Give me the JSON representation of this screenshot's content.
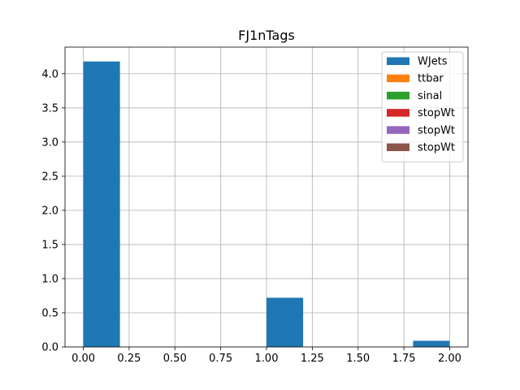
{
  "chart_data": {
    "type": "bar",
    "title": "FJ1nTags",
    "xlabel": "",
    "ylabel": "",
    "xlim": [
      -0.1,
      2.1
    ],
    "ylim": [
      0,
      4.39
    ],
    "x_ticks": [
      0.0,
      0.25,
      0.5,
      0.75,
      1.0,
      1.25,
      1.5,
      1.75,
      2.0
    ],
    "x_tick_labels": [
      "0.00",
      "0.25",
      "0.50",
      "0.75",
      "1.00",
      "1.25",
      "1.50",
      "1.75",
      "2.00"
    ],
    "y_ticks": [
      0.0,
      0.5,
      1.0,
      1.5,
      2.0,
      2.5,
      3.0,
      3.5,
      4.0
    ],
    "y_tick_labels": [
      "0.0",
      "0.5",
      "1.0",
      "1.5",
      "2.0",
      "2.5",
      "3.0",
      "3.5",
      "4.0"
    ],
    "grid": true,
    "legend_position": "top-right",
    "bin_edges": [
      0.0,
      0.2,
      0.4,
      0.6,
      0.8,
      1.0,
      1.2,
      1.4,
      1.6,
      1.8,
      2.0
    ],
    "series": [
      {
        "name": "WJets",
        "color": "#1f77b4",
        "values": [
          4.18,
          0,
          0,
          0,
          0,
          0.72,
          0,
          0,
          0,
          0.09
        ]
      },
      {
        "name": "ttbar",
        "color": "#ff7f0e",
        "values": [
          0,
          0,
          0,
          0,
          0,
          0,
          0,
          0,
          0,
          0
        ]
      },
      {
        "name": "sinal",
        "color": "#2ca02c",
        "values": [
          0,
          0,
          0,
          0,
          0,
          0,
          0,
          0,
          0,
          0
        ]
      },
      {
        "name": "stopWt",
        "color": "#d62728",
        "values": [
          0,
          0,
          0,
          0,
          0,
          0,
          0,
          0,
          0,
          0
        ]
      },
      {
        "name": "stopWt",
        "color": "#9467bd",
        "values": [
          0,
          0,
          0,
          0,
          0,
          0,
          0,
          0,
          0,
          0
        ]
      },
      {
        "name": "stopWt",
        "color": "#8c564b",
        "values": [
          0,
          0,
          0,
          0,
          0,
          0,
          0,
          0,
          0,
          0
        ]
      }
    ]
  }
}
